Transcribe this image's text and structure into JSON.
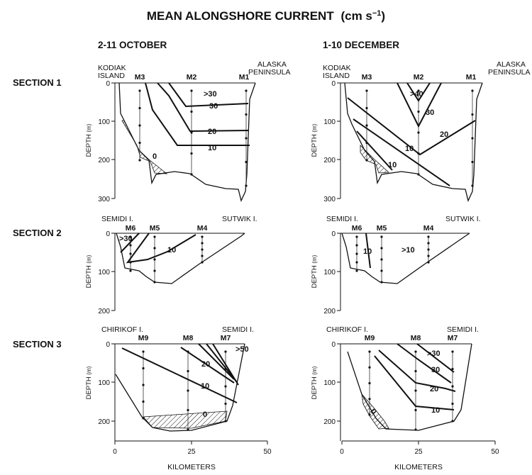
{
  "title": "MEAN ALONGSHORE CURRENT",
  "title_units": "(cm s",
  "title_exp": "−1",
  "title_close": ")",
  "columns": [
    "2-11 OCTOBER",
    "1-10 DECEMBER"
  ],
  "sections": [
    "SECTION 1",
    "SECTION 2",
    "SECTION 3"
  ],
  "places": {
    "kodiak1": "KODIAK",
    "kodiak2": "ISLAND",
    "alaska1": "ALASKA",
    "alaska2": "PENINSULA",
    "semidi": "SEMIDI I.",
    "sutwik": "SUTWIK I.",
    "chirikof": "CHIRIKOF I."
  },
  "moorings": {
    "s1": [
      "M3",
      "M2",
      "M1"
    ],
    "s2": [
      "M6",
      "M5",
      "M4"
    ],
    "s3": [
      "M9",
      "M8",
      "M7"
    ]
  },
  "depth_axis": {
    "title": "DEPTH",
    "unit": "(m)",
    "s1_ticks": [
      "0",
      "100",
      "200",
      "300"
    ],
    "s23_ticks": [
      "0",
      "100",
      "200"
    ]
  },
  "x_axis": {
    "title": "KILOMETERS",
    "ticks": [
      "0",
      "25",
      "50"
    ]
  },
  "contour_labels": {
    "oct_s1": [
      ">30",
      "30",
      "20",
      "10",
      "0"
    ],
    "dec_s1": [
      ">40",
      "30",
      "20",
      "10",
      "10"
    ],
    "oct_s2": [
      ">30",
      "10"
    ],
    "dec_s2": [
      "10",
      ">10"
    ],
    "oct_s3": [
      ">50",
      "20",
      "10",
      "0"
    ],
    "dec_s3": [
      ">30",
      "30",
      "20",
      "10",
      "0"
    ]
  }
}
